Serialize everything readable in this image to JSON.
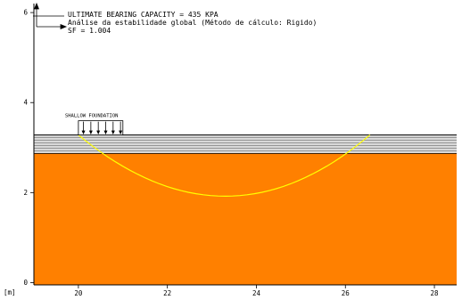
{
  "header": {
    "line1": "ULTIMATE BEARING CAPACITY = 435 KPA",
    "line2": "Análise da estabilidade global (Método de cálculo: Rigido)",
    "line3": "SF = 1.004"
  },
  "foundation": {
    "label": "SHALLOW FOUNDATION",
    "x_start": 20.0,
    "x_end": 21.0,
    "load_arrows": 6
  },
  "axes": {
    "unit_label": "[m]",
    "x_ticks": [
      "20",
      "22",
      "24",
      "26",
      "28"
    ],
    "y_ticks": [
      "0",
      "2",
      "4",
      "6"
    ],
    "x_range": [
      19.0,
      28.5
    ],
    "y_range": [
      -0.05,
      6.2
    ]
  },
  "soil": {
    "ground_surface_y": 3.28,
    "upper_layer_bottom_y": 2.87,
    "upper_layer_color": "#d9d9d9",
    "lower_layer_color": "#ff8000"
  },
  "slip_surface": {
    "color": "#ffff00",
    "x_left": 20.0,
    "x_right": 26.55,
    "y_top": 3.28,
    "y_bottom": 1.92,
    "x_lowest": 23.3
  },
  "colors": {
    "axis": "#000000",
    "text": "#000000"
  }
}
